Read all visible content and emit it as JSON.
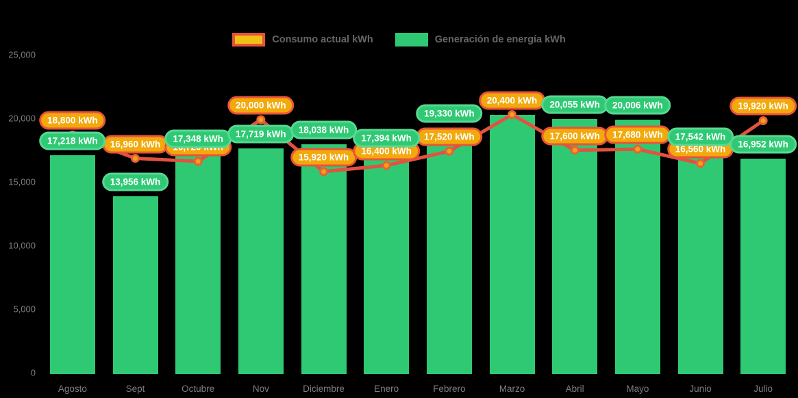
{
  "legend": {
    "items": [
      {
        "name": "consumo",
        "label": "Consumo actual kWh",
        "swatch_fill": "#eec112",
        "swatch_border": "#e8503a"
      },
      {
        "name": "generacion",
        "label": "Generación de energía kWh",
        "swatch_fill": "#2fc974",
        "swatch_border": "#2fc974"
      }
    ]
  },
  "chart_data": {
    "type": "bar+line",
    "categories": [
      "Agosto",
      "Sept",
      "Octubre",
      "Nov",
      "Diciembre",
      "Enero",
      "Febrero",
      "Marzo",
      "Abril",
      "Mayo",
      "Junio",
      "Julio"
    ],
    "series": [
      {
        "name": "Consumo actual kWh",
        "type": "line",
        "color": "#e2523f",
        "values": [
          18800,
          16960,
          16720,
          20000,
          15920,
          16400,
          17520,
          20400,
          17600,
          17680,
          16560,
          19920
        ]
      },
      {
        "name": "Generación de energía kWh",
        "type": "bar",
        "color": "#2fc974",
        "values": [
          17218,
          13956,
          17348,
          17719,
          18038,
          17394,
          19330,
          20400,
          20055,
          20006,
          17542,
          16952
        ]
      }
    ],
    "point_labels": {
      "consumo": [
        "18,800 kWh",
        "16,960 kWh",
        "16,720 kWh",
        "20,000 kWh",
        "15,920 kWh",
        "16,400 kWh",
        "17,520 kWh",
        "20,400 kWh",
        "17,600 kWh",
        "17,680 kWh",
        "16,560 kWh",
        "19,920 kWh"
      ],
      "generacion": [
        "17,218 kWh",
        "13,956 kWh",
        "17,348 kWh",
        "17,719 kWh",
        "18,038 kWh",
        "17,394 kWh",
        "19,330 kWh",
        null,
        "20,055 kWh",
        "20,006 kWh",
        "17,542 kWh",
        "16,952 kWh"
      ]
    },
    "y_ticks": [
      "0",
      "5,000",
      "10,000",
      "15,000",
      "20,000",
      "25,000"
    ],
    "ylim": [
      0,
      25000
    ],
    "grid": false,
    "legend_position": "top-center",
    "background": "#000000",
    "colors": {
      "bar": "#2fc974",
      "line": "#e2523f",
      "point_fill": "#f0a40e",
      "point_stroke": "#e8603c",
      "label_consumo_bg": "#f2a90b",
      "label_consumo_border": "#ea5438",
      "label_generacion_bg": "#2fc974",
      "label_generacion_border": "#57d893",
      "axis_text": "#7f7f7f"
    }
  }
}
